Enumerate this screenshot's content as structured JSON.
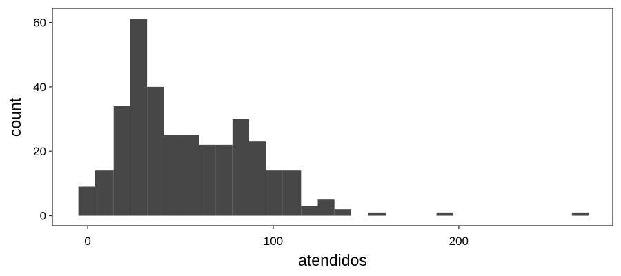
{
  "chart_data": {
    "type": "bar",
    "subtype": "histogram",
    "xlabel": "atendidos",
    "ylabel": "count",
    "xlim": [
      -19,
      283
    ],
    "ylim": [
      -3.1,
      64.4
    ],
    "x_ticks": [
      0,
      100,
      200
    ],
    "y_ticks": [
      0,
      20,
      40,
      60
    ],
    "bar_color": "#474747",
    "frame_color": "#333333",
    "grid": false,
    "bins": [
      {
        "x0": -5,
        "x1": 4,
        "count": 9
      },
      {
        "x0": 4,
        "x1": 14,
        "count": 14
      },
      {
        "x0": 14,
        "x1": 23,
        "count": 34
      },
      {
        "x0": 23,
        "x1": 32,
        "count": 61
      },
      {
        "x0": 32,
        "x1": 41,
        "count": 40
      },
      {
        "x0": 41,
        "x1": 50,
        "count": 25
      },
      {
        "x0": 50,
        "x1": 60,
        "count": 25
      },
      {
        "x0": 60,
        "x1": 69,
        "count": 22
      },
      {
        "x0": 69,
        "x1": 78,
        "count": 22
      },
      {
        "x0": 78,
        "x1": 87,
        "count": 30
      },
      {
        "x0": 87,
        "x1": 96,
        "count": 23
      },
      {
        "x0": 96,
        "x1": 105,
        "count": 14
      },
      {
        "x0": 105,
        "x1": 115,
        "count": 14
      },
      {
        "x0": 115,
        "x1": 124,
        "count": 3
      },
      {
        "x0": 124,
        "x1": 133,
        "count": 5
      },
      {
        "x0": 133,
        "x1": 142,
        "count": 2
      },
      {
        "x0": 142,
        "x1": 151,
        "count": 0
      },
      {
        "x0": 151,
        "x1": 161,
        "count": 1
      },
      {
        "x0": 161,
        "x1": 170,
        "count": 0
      },
      {
        "x0": 170,
        "x1": 179,
        "count": 0
      },
      {
        "x0": 179,
        "x1": 188,
        "count": 0
      },
      {
        "x0": 188,
        "x1": 197,
        "count": 1
      },
      {
        "x0": 197,
        "x1": 206,
        "count": 0
      },
      {
        "x0": 206,
        "x1": 216,
        "count": 0
      },
      {
        "x0": 216,
        "x1": 225,
        "count": 0
      },
      {
        "x0": 225,
        "x1": 234,
        "count": 0
      },
      {
        "x0": 234,
        "x1": 243,
        "count": 0
      },
      {
        "x0": 243,
        "x1": 252,
        "count": 0
      },
      {
        "x0": 252,
        "x1": 261,
        "count": 0
      },
      {
        "x0": 261,
        "x1": 270,
        "count": 1
      }
    ]
  }
}
